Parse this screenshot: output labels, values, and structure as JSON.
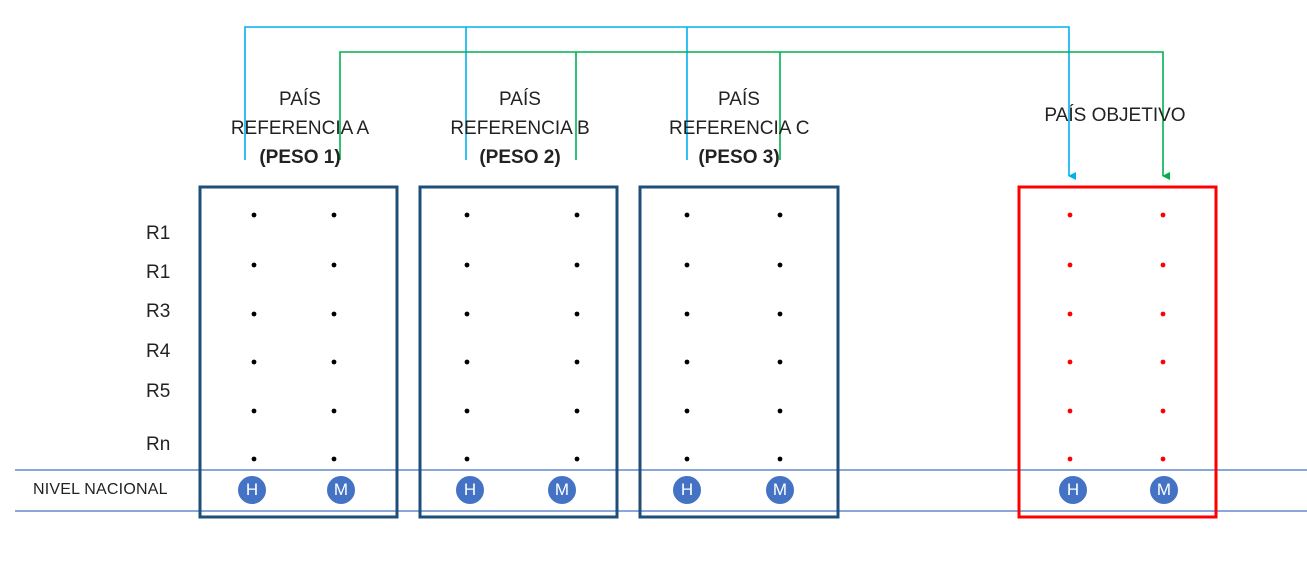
{
  "colors": {
    "box_border": "#1f4e79",
    "target_border": "#ff0000",
    "blue_line": "#00b0f0",
    "green_line": "#00b050",
    "national_band": "#4472c4",
    "circle_fill": "#4472c4",
    "dot_black": "#000000",
    "dot_red": "#ff0000"
  },
  "countries": [
    {
      "line1": "PAÍS",
      "line2": "REFERENCIA A",
      "weight": "(PESO 1)"
    },
    {
      "line1": "PAÍS",
      "line2": "REFERENCIA B",
      "weight": "(PESO 2)"
    },
    {
      "line1": "PAÍS",
      "line2": "REFERENCIA C",
      "weight": "(PESO 3)"
    }
  ],
  "target": {
    "label": "PAÍS OBJETIVO"
  },
  "rows": [
    "R1",
    "R1",
    "R3",
    "R4",
    "R5",
    "Rn"
  ],
  "national": {
    "label": "NIVEL NACIONAL",
    "male": "H",
    "female": "M"
  }
}
